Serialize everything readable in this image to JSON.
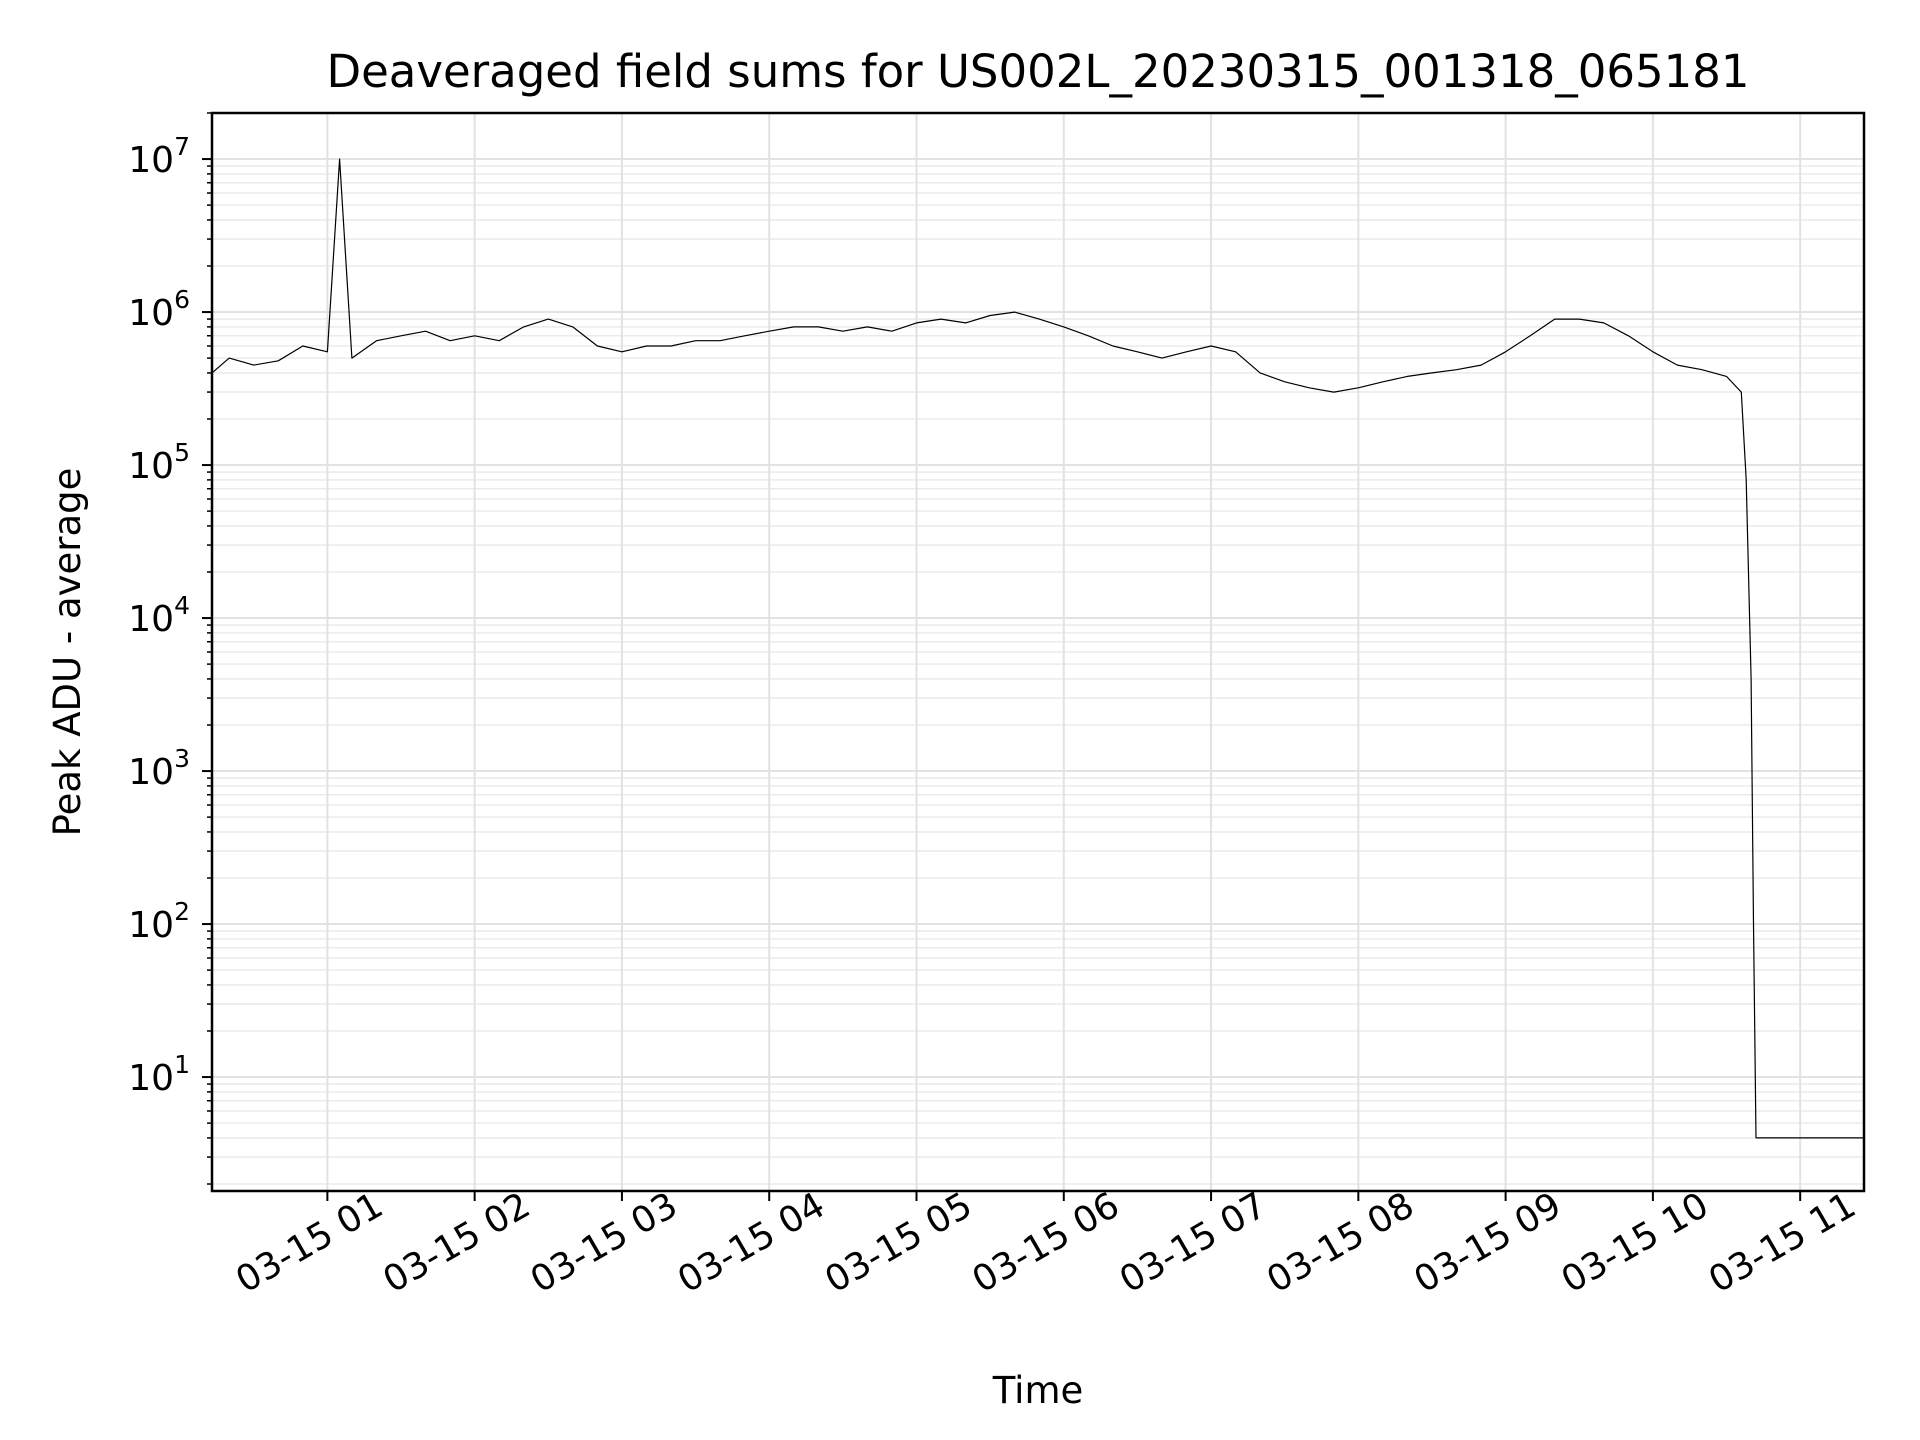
{
  "chart_data": {
    "type": "line",
    "title": "Deaveraged field sums for US002L_20230315_001318_065181",
    "xlabel": "Time",
    "ylabel": "Peak ADU - average",
    "x_axis_kind": "time",
    "y_scale": "log",
    "xlim": [
      "03-15 00:13",
      "03-15 11:26"
    ],
    "ylim": [
      1.8,
      20000000
    ],
    "grid": true,
    "legend": "none",
    "x_ticks": [
      "03-15 01",
      "03-15 02",
      "03-15 03",
      "03-15 04",
      "03-15 05",
      "03-15 06",
      "03-15 07",
      "03-15 08",
      "03-15 09",
      "03-15 10",
      "03-15 11"
    ],
    "y_ticks": [
      {
        "base": "10",
        "exp": "1",
        "value": 10
      },
      {
        "base": "10",
        "exp": "2",
        "value": 100
      },
      {
        "base": "10",
        "exp": "3",
        "value": 1000
      },
      {
        "base": "10",
        "exp": "4",
        "value": 10000
      },
      {
        "base": "10",
        "exp": "5",
        "value": 100000
      },
      {
        "base": "10",
        "exp": "6",
        "value": 1000000
      },
      {
        "base": "10",
        "exp": "7",
        "value": 10000000
      }
    ],
    "series": [
      {
        "color": "#000000",
        "x": [
          "03-15 00:13",
          "03-15 00:20",
          "03-15 00:30",
          "03-15 00:40",
          "03-15 00:50",
          "03-15 01:00",
          "03-15 01:05",
          "03-15 01:10",
          "03-15 01:20",
          "03-15 01:30",
          "03-15 01:40",
          "03-15 01:50",
          "03-15 02:00",
          "03-15 02:10",
          "03-15 02:20",
          "03-15 02:30",
          "03-15 02:40",
          "03-15 02:50",
          "03-15 03:00",
          "03-15 03:10",
          "03-15 03:20",
          "03-15 03:30",
          "03-15 03:40",
          "03-15 03:50",
          "03-15 04:00",
          "03-15 04:10",
          "03-15 04:20",
          "03-15 04:30",
          "03-15 04:40",
          "03-15 04:50",
          "03-15 05:00",
          "03-15 05:10",
          "03-15 05:20",
          "03-15 05:30",
          "03-15 05:40",
          "03-15 05:50",
          "03-15 06:00",
          "03-15 06:10",
          "03-15 06:20",
          "03-15 06:30",
          "03-15 06:40",
          "03-15 06:50",
          "03-15 07:00",
          "03-15 07:10",
          "03-15 07:20",
          "03-15 07:30",
          "03-15 07:40",
          "03-15 07:50",
          "03-15 08:00",
          "03-15 08:10",
          "03-15 08:20",
          "03-15 08:30",
          "03-15 08:40",
          "03-15 08:50",
          "03-15 09:00",
          "03-15 09:10",
          "03-15 09:20",
          "03-15 09:30",
          "03-15 09:40",
          "03-15 09:50",
          "03-15 10:00",
          "03-15 10:10",
          "03-15 10:20",
          "03-15 10:30",
          "03-15 10:36",
          "03-15 10:38",
          "03-15 10:40",
          "03-15 10:41",
          "03-15 10:42",
          "03-15 10:50",
          "03-15 11:00",
          "03-15 11:10",
          "03-15 11:26"
        ],
        "y": [
          400000,
          500000,
          450000,
          480000,
          600000,
          550000,
          10000000,
          500000,
          650000,
          700000,
          750000,
          650000,
          700000,
          650000,
          800000,
          900000,
          800000,
          600000,
          550000,
          600000,
          600000,
          650000,
          650000,
          700000,
          750000,
          800000,
          800000,
          750000,
          800000,
          750000,
          850000,
          900000,
          850000,
          950000,
          1000000,
          900000,
          800000,
          700000,
          600000,
          550000,
          500000,
          550000,
          600000,
          550000,
          400000,
          350000,
          320000,
          300000,
          320000,
          350000,
          380000,
          400000,
          420000,
          450000,
          550000,
          700000,
          900000,
          900000,
          850000,
          700000,
          550000,
          450000,
          420000,
          380000,
          300000,
          80000,
          4000,
          100,
          4,
          4,
          4,
          4,
          4
        ]
      }
    ]
  }
}
